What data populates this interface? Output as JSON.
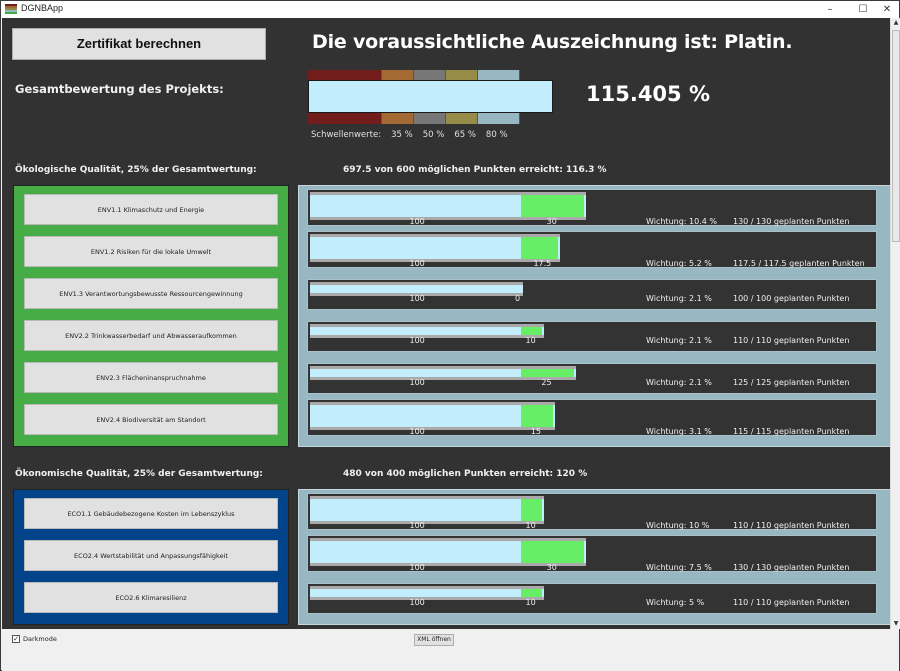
{
  "window": {
    "title": "DGNBApp",
    "controls": {
      "minimize": "–",
      "maximize": "☐",
      "close": "✕"
    }
  },
  "header": {
    "calculate_button": "Zertifikat berechnen",
    "headline": "Die voraussichtliche Auszeichnung ist: Platin.",
    "overall_label": "Gesamtbewertung des Projekts:",
    "overall_percent": "115.405 %",
    "overall_value_percent": 115.405,
    "threshold_prefix": "Schwellenwerte:",
    "thresholds": [
      "35 %",
      "50 %",
      "65 %",
      "80 %"
    ],
    "threshold_colors": [
      "#731c1c",
      "#a36a33",
      "#777777",
      "#968c48",
      "#97b8c3"
    ]
  },
  "sections": [
    {
      "title": "Ökologische Qualität, 25% der Gesamtwertung:",
      "points_summary": "697.5 von 600 möglichen Punkten erreicht: 116.3 %",
      "panel_color": "#46ad46",
      "criteria": [
        {
          "label": "ENV1.1 Klimaschutz und Energie",
          "base": "100",
          "extra": "30",
          "base_value": 100,
          "extra_value": 30,
          "weight": "Wichtung: 10.4 %",
          "planned": "130 / 130  geplanten Punkten",
          "tall": true
        },
        {
          "label": "ENV1.2 Risiken für die lokale Umwelt",
          "base": "100",
          "extra": "17.5",
          "base_value": 100,
          "extra_value": 17.5,
          "weight": "Wichtung: 5.2 %",
          "planned": "117.5 / 117.5  geplanten Punkten",
          "tall": true
        },
        {
          "label": "ENV1.3 Verantwortungsbewusste Ressourcengewinnung",
          "base": "100",
          "extra": "0",
          "base_value": 100,
          "extra_value": 0,
          "weight": "Wichtung: 2.1 %",
          "planned": "100 / 100  geplanten Punkten",
          "tall": false
        },
        {
          "label": "ENV2.2 Trinkwasserbedarf und Abwasseraufkommen",
          "base": "100",
          "extra": "10",
          "base_value": 100,
          "extra_value": 10,
          "weight": "Wichtung: 2.1 %",
          "planned": "110 / 110  geplanten Punkten",
          "tall": false
        },
        {
          "label": "ENV2.3 Flächeninanspruchnahme",
          "base": "100",
          "extra": "25",
          "base_value": 100,
          "extra_value": 25,
          "weight": "Wichtung: 2.1 %",
          "planned": "125 / 125  geplanten Punkten",
          "tall": false
        },
        {
          "label": "ENV2.4 Biodiversität am Standort",
          "base": "100",
          "extra": "15",
          "base_value": 100,
          "extra_value": 15,
          "weight": "Wichtung: 3.1 %",
          "planned": "115 / 115  geplanten Punkten",
          "tall": true
        }
      ]
    },
    {
      "title": "Ökonomische Qualität, 25% der Gesamtwertung:",
      "points_summary": "480 von 400 möglichen Punkten erreicht: 120 %",
      "panel_color": "#024389",
      "criteria": [
        {
          "label": "ECO1.1 Gebäudebezogene Kosten im Lebenszyklus",
          "base": "100",
          "extra": "10",
          "base_value": 100,
          "extra_value": 10,
          "weight": "Wichtung: 10 %",
          "planned": "110 / 110  geplanten Punkten",
          "tall": true
        },
        {
          "label": "ECO2.4 Wertstabilität und Anpassungsfähigkeit",
          "base": "100",
          "extra": "30",
          "base_value": 100,
          "extra_value": 30,
          "weight": "Wichtung: 7.5 %",
          "planned": "130 / 130  geplanten Punkten",
          "tall": true
        },
        {
          "label": "ECO2.6 Klimaresilienz",
          "base": "100",
          "extra": "10",
          "base_value": 100,
          "extra_value": 10,
          "weight": "Wichtung: 5 %",
          "planned": "110 / 110  geplanten Punkten",
          "tall": false
        }
      ]
    }
  ],
  "footer": {
    "darkmode_label": "Darkmode",
    "darkmode_checked": true,
    "check_glyph": "✓",
    "xml_button": "XML öffnen"
  }
}
